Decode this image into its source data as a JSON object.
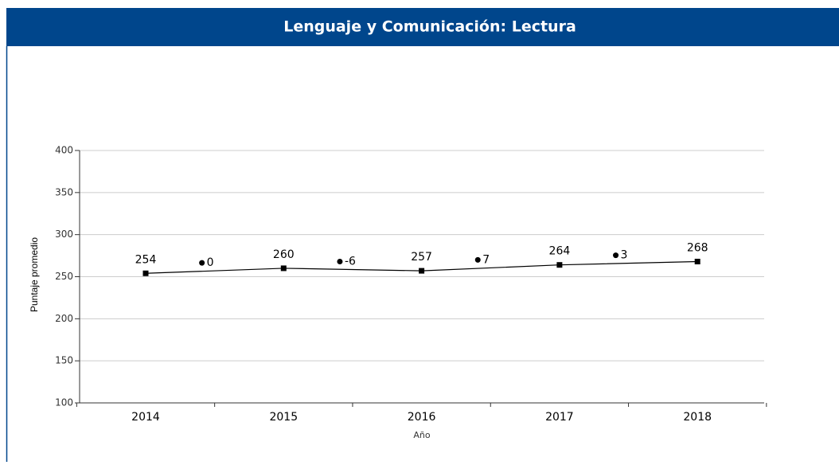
{
  "chart_data": {
    "type": "line",
    "title": "Lenguaje y Comunicación: Lectura",
    "ylabel": "Puntaje promedio",
    "xlabel": "Año",
    "categories": [
      "2014",
      "2015",
      "2016",
      "2017",
      "2018"
    ],
    "values": [
      254,
      260,
      257,
      264,
      268
    ],
    "differences": [
      0,
      -6,
      7,
      3
    ],
    "color": "#000000",
    "header_color": "#00468c",
    "ylim": [
      100,
      400
    ],
    "yticks": [
      100,
      150,
      200,
      250,
      300,
      350,
      400
    ],
    "grid": true
  }
}
